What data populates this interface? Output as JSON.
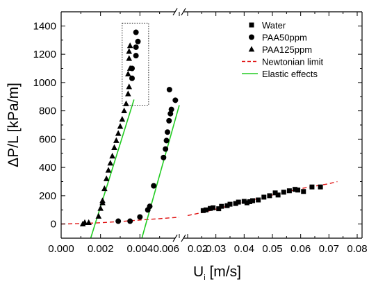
{
  "chart_data": {
    "type": "scatter",
    "xlabel_main": "U",
    "xlabel_sub": "i",
    "xlabel_unit": " [m/s]",
    "ylabel": "ΔP/L [kPa/m]",
    "x_axis_break": true,
    "x_ranges": [
      [
        0.0,
        0.006
      ],
      [
        0.02,
        0.08
      ]
    ],
    "ylim": [
      -100,
      1500
    ],
    "x_ticks_left": [
      0.0,
      0.002,
      0.004,
      0.006
    ],
    "x_tick_labels_left": [
      "0.000",
      "0.002",
      "0.004",
      "0.006"
    ],
    "x_ticks_right": [
      0.02,
      0.03,
      0.04,
      0.05,
      0.06,
      0.07,
      0.08
    ],
    "x_tick_labels_right": [
      "0.02",
      "0.03",
      "0.04",
      "0.05",
      "0.06",
      "0.07",
      "0.08"
    ],
    "y_ticks": [
      0,
      200,
      400,
      600,
      800,
      1000,
      1200,
      1400
    ],
    "y_tick_labels": [
      "0",
      "200",
      "400",
      "600",
      "800",
      "1000",
      "1200",
      "1400"
    ],
    "grid": false,
    "legend_position": "top-right",
    "series": [
      {
        "name": "Water",
        "marker": "square",
        "color": "#000000",
        "points": [
          [
            0.0255,
            95
          ],
          [
            0.0265,
            100
          ],
          [
            0.028,
            110
          ],
          [
            0.029,
            115
          ],
          [
            0.031,
            108
          ],
          [
            0.032,
            125
          ],
          [
            0.034,
            130
          ],
          [
            0.035,
            140
          ],
          [
            0.037,
            145
          ],
          [
            0.038,
            155
          ],
          [
            0.04,
            160
          ],
          [
            0.041,
            150
          ],
          [
            0.042,
            158
          ],
          [
            0.043,
            165
          ],
          [
            0.045,
            170
          ],
          [
            0.047,
            190
          ],
          [
            0.049,
            200
          ],
          [
            0.051,
            220
          ],
          [
            0.052,
            205
          ],
          [
            0.054,
            225
          ],
          [
            0.056,
            235
          ],
          [
            0.058,
            245
          ],
          [
            0.059,
            240
          ],
          [
            0.061,
            230
          ],
          [
            0.064,
            262
          ],
          [
            0.067,
            262
          ]
        ]
      },
      {
        "name": "PAA50ppm",
        "marker": "circle",
        "color": "#000000",
        "points": [
          [
            0.0029,
            20
          ],
          [
            0.0035,
            20
          ],
          [
            0.004,
            50
          ],
          [
            0.0044,
            100
          ],
          [
            0.0045,
            125
          ],
          [
            0.0047,
            270
          ],
          [
            0.0052,
            470
          ],
          [
            0.0053,
            530
          ],
          [
            0.00535,
            590
          ],
          [
            0.0054,
            650
          ],
          [
            0.00548,
            730
          ],
          [
            0.00555,
            780
          ],
          [
            0.0056,
            810
          ],
          [
            0.0055,
            950
          ],
          [
            0.0058,
            875
          ],
          [
            0.0036,
            1030
          ],
          [
            0.0036,
            1100
          ],
          [
            0.0038,
            1190
          ],
          [
            0.0038,
            1250
          ],
          [
            0.0039,
            1290
          ],
          [
            0.0038,
            1355
          ]
        ]
      },
      {
        "name": "PAA125ppm",
        "marker": "triangle",
        "color": "#000000",
        "points": [
          [
            0.0011,
            0
          ],
          [
            0.0012,
            10
          ],
          [
            0.0014,
            10
          ],
          [
            0.0019,
            55
          ],
          [
            0.002,
            110
          ],
          [
            0.0021,
            150
          ],
          [
            0.0021,
            165
          ],
          [
            0.0022,
            250
          ],
          [
            0.0023,
            320
          ],
          [
            0.0024,
            380
          ],
          [
            0.0025,
            430
          ],
          [
            0.0026,
            480
          ],
          [
            0.0027,
            540
          ],
          [
            0.0028,
            590
          ],
          [
            0.0029,
            640
          ],
          [
            0.003,
            690
          ],
          [
            0.0031,
            740
          ],
          [
            0.0032,
            800
          ],
          [
            0.0033,
            850
          ],
          [
            0.0034,
            920
          ],
          [
            0.00345,
            970
          ],
          [
            0.0034,
            1060
          ],
          [
            0.0035,
            1100
          ],
          [
            0.00345,
            1170
          ],
          [
            0.00345,
            1220
          ],
          [
            0.0035,
            1260
          ]
        ]
      }
    ],
    "lines": [
      {
        "name": "Newtonian limit",
        "style": "dashed",
        "color": "#e01010",
        "points": [
          [
            0.0,
            0
          ],
          [
            0.001,
            3
          ],
          [
            0.002,
            9
          ],
          [
            0.003,
            18
          ],
          [
            0.004,
            28
          ],
          [
            0.005,
            38
          ],
          [
            0.006,
            48
          ],
          [
            0.02,
            60
          ],
          [
            0.025,
            80
          ],
          [
            0.03,
            105
          ],
          [
            0.035,
            130
          ],
          [
            0.04,
            155
          ],
          [
            0.045,
            180
          ],
          [
            0.05,
            205
          ],
          [
            0.055,
            228
          ],
          [
            0.06,
            250
          ],
          [
            0.065,
            268
          ],
          [
            0.07,
            285
          ],
          [
            0.073,
            300
          ]
        ]
      },
      {
        "name": "Elastic effects",
        "style": "solid",
        "color": "#22cc22",
        "segments": [
          [
            [
              0.0015,
              -100
            ],
            [
              0.0037,
              880
            ]
          ],
          [
            [
              0.0041,
              -100
            ],
            [
              0.006,
              840
            ]
          ]
        ]
      }
    ],
    "annotation_box": {
      "x": [
        0.0031,
        0.0062
      ],
      "y": [
        840,
        1420
      ],
      "style": "dotted"
    }
  }
}
